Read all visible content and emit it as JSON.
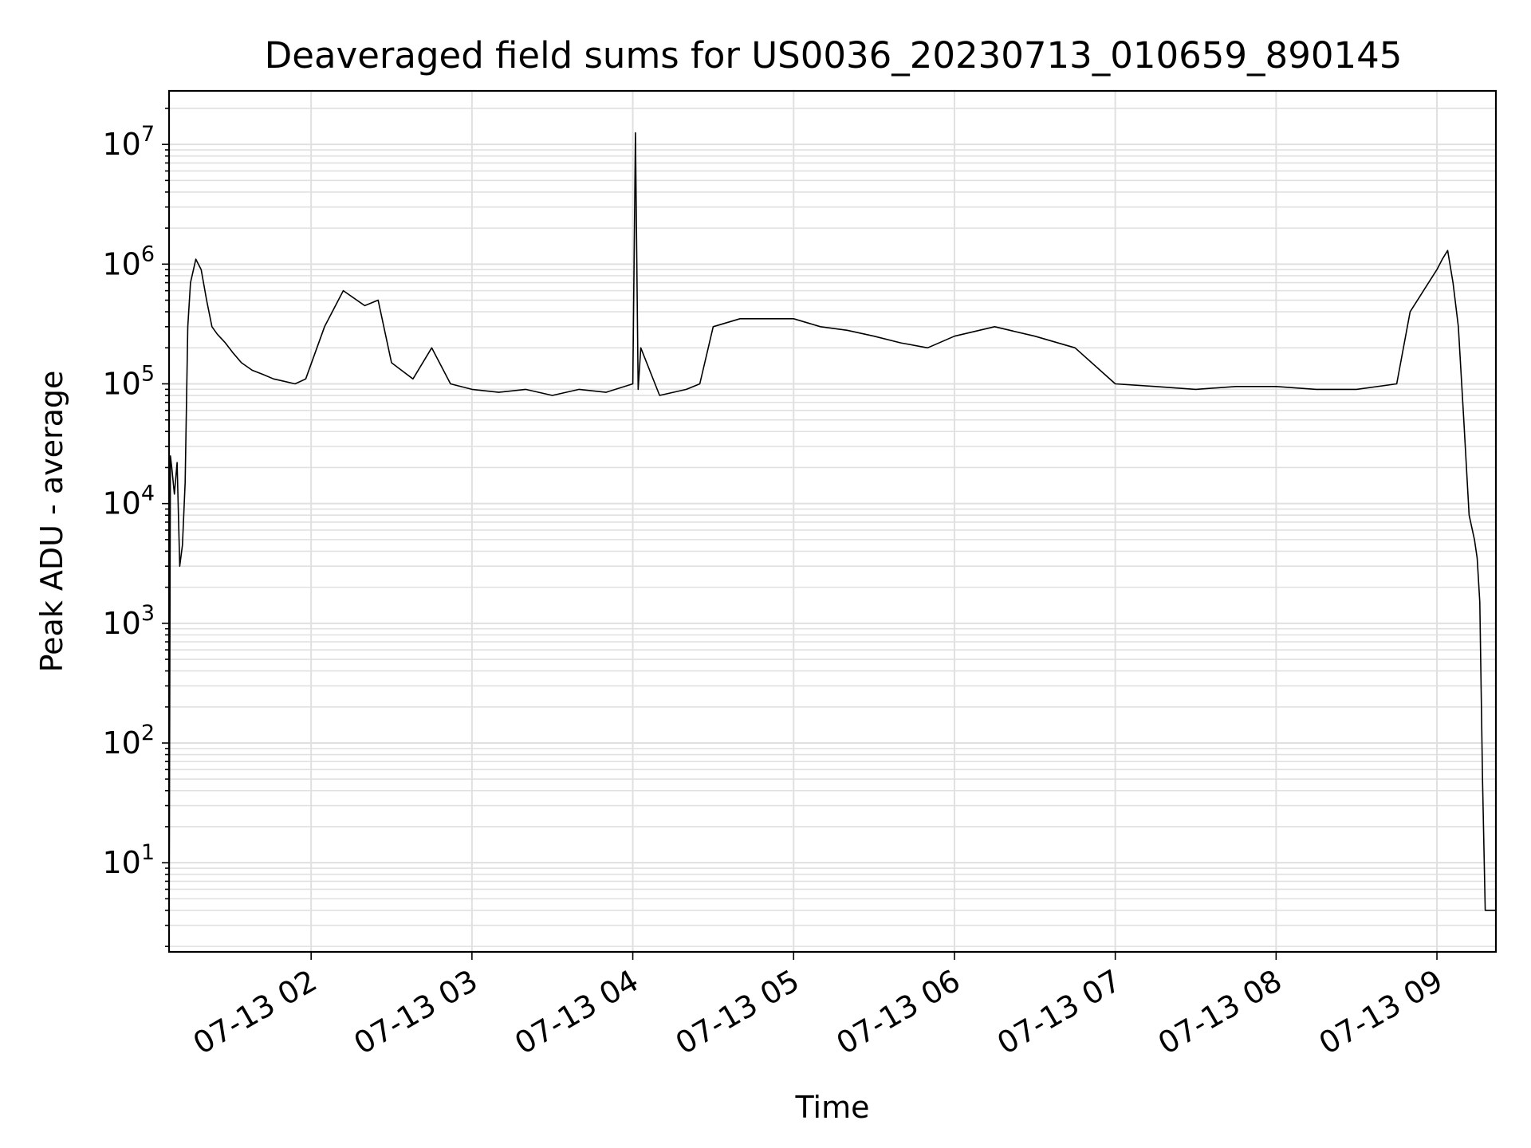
{
  "chart_data": {
    "type": "line",
    "title": "Deaveraged field sums for US0036_20230713_010659_890145",
    "xlabel": "Time",
    "ylabel": "Peak ADU - average",
    "y_scale": "log",
    "ylim": [
      1.8,
      28000000
    ],
    "xlim": [
      "07-13 01:07",
      "07-13 09:22"
    ],
    "grid": true,
    "line_color": "#000000",
    "grid_color": "#e0e0e0",
    "x_ticks": [
      "07-13 02",
      "07-13 03",
      "07-13 04",
      "07-13 05",
      "07-13 06",
      "07-13 07",
      "07-13 08",
      "07-13 09"
    ],
    "y_ticks": [
      {
        "value": 10,
        "base": "10",
        "exp": "1"
      },
      {
        "value": 100,
        "base": "10",
        "exp": "2"
      },
      {
        "value": 1000,
        "base": "10",
        "exp": "3"
      },
      {
        "value": 10000,
        "base": "10",
        "exp": "4"
      },
      {
        "value": 100000,
        "base": "10",
        "exp": "5"
      },
      {
        "value": 1000000,
        "base": "10",
        "exp": "6"
      },
      {
        "value": 10000000,
        "base": "10",
        "exp": "7"
      }
    ],
    "series": [
      {
        "x": [
          "07-13 01:07",
          "07-13 01:07:30",
          "07-13 01:08",
          "07-13 01:09",
          "07-13 01:10",
          "07-13 01:11",
          "07-13 01:12",
          "07-13 01:13",
          "07-13 01:14",
          "07-13 01:15",
          "07-13 01:17",
          "07-13 01:19",
          "07-13 01:21",
          "07-13 01:23",
          "07-13 01:25",
          "07-13 01:28",
          "07-13 01:31",
          "07-13 01:34",
          "07-13 01:38",
          "07-13 01:42",
          "07-13 01:46",
          "07-13 01:50",
          "07-13 01:54",
          "07-13 01:58",
          "07-13 02:05",
          "07-13 02:12",
          "07-13 02:20",
          "07-13 02:25",
          "07-13 02:30",
          "07-13 02:38",
          "07-13 02:45",
          "07-13 02:52",
          "07-13 03:00",
          "07-13 03:10",
          "07-13 03:20",
          "07-13 03:30",
          "07-13 03:40",
          "07-13 03:50",
          "07-13 04:00",
          "07-13 04:01",
          "07-13 04:02",
          "07-13 04:03",
          "07-13 04:10",
          "07-13 04:20",
          "07-13 04:25",
          "07-13 04:30",
          "07-13 04:40",
          "07-13 04:50",
          "07-13 05:00",
          "07-13 05:10",
          "07-13 05:20",
          "07-13 05:30",
          "07-13 05:40",
          "07-13 05:50",
          "07-13 06:00",
          "07-13 06:15",
          "07-13 06:30",
          "07-13 06:45",
          "07-13 07:00",
          "07-13 07:15",
          "07-13 07:30",
          "07-13 07:45",
          "07-13 08:00",
          "07-13 08:15",
          "07-13 08:30",
          "07-13 08:45",
          "07-13 08:50",
          "07-13 08:55",
          "07-13 09:00",
          "07-13 09:02",
          "07-13 09:04",
          "07-13 09:06",
          "07-13 09:08",
          "07-13 09:10",
          "07-13 09:12",
          "07-13 09:14",
          "07-13 09:15",
          "07-13 09:16",
          "07-13 09:17",
          "07-13 09:18",
          "07-13 09:19",
          "07-13 09:20",
          "07-13 09:21",
          "07-13 09:22"
        ],
        "y": [
          1.8,
          25000,
          20000,
          12000,
          22000,
          3000,
          4500,
          15000,
          300000,
          700000,
          1100000,
          900000,
          500000,
          300000,
          260000,
          220000,
          180000,
          150000,
          130000,
          120000,
          110000,
          105000,
          100000,
          110000,
          300000,
          600000,
          450000,
          500000,
          150000,
          110000,
          200000,
          100000,
          90000,
          85000,
          90000,
          80000,
          90000,
          85000,
          100000,
          12500000,
          90000,
          200000,
          80000,
          90000,
          100000,
          300000,
          350000,
          350000,
          350000,
          300000,
          280000,
          250000,
          220000,
          200000,
          250000,
          300000,
          250000,
          200000,
          100000,
          95000,
          90000,
          95000,
          95000,
          90000,
          90000,
          100000,
          400000,
          600000,
          900000,
          1100000,
          1300000,
          700000,
          300000,
          50000,
          8000,
          5000,
          3500,
          1500,
          50,
          4,
          4,
          4,
          4,
          4
        ]
      }
    ]
  }
}
